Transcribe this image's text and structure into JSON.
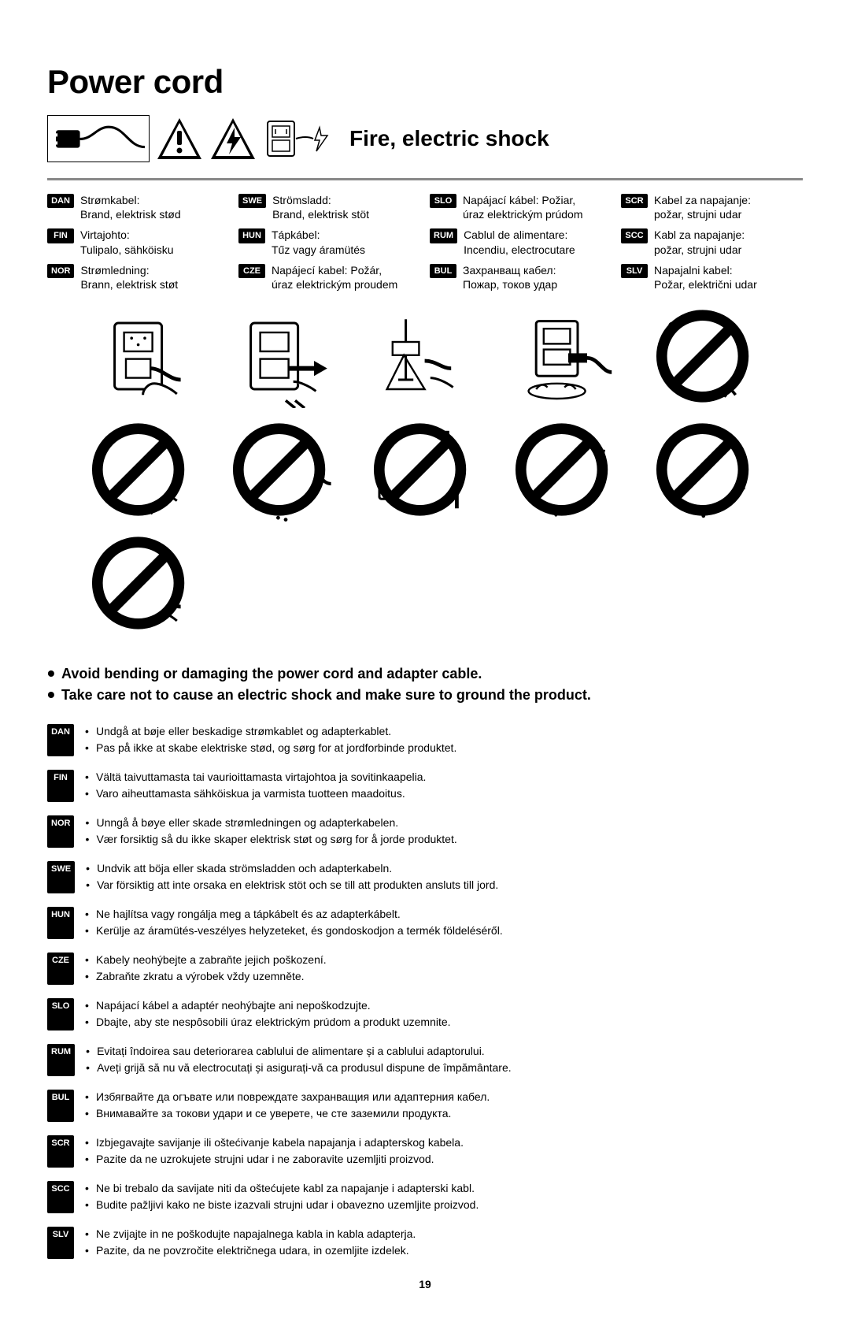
{
  "title": "Power cord",
  "subtitle": "Fire, electric shock",
  "page_number": "19",
  "translations_header": [
    {
      "tag": "DAN",
      "l1": "Strømkabel:",
      "l2": "Brand, elektrisk stød"
    },
    {
      "tag": "SWE",
      "l1": "Strömsladd:",
      "l2": "Brand, elektrisk stöt"
    },
    {
      "tag": "SLO",
      "l1": "Napájací kábel: Požiar,",
      "l2": "úraz elektrickým prúdom"
    },
    {
      "tag": "SCR",
      "l1": "Kabel za napajanje:",
      "l2": "požar, strujni udar"
    },
    {
      "tag": "FIN",
      "l1": "Virtajohto:",
      "l2": "Tulipalo, sähköisku"
    },
    {
      "tag": "HUN",
      "l1": "Tápkábel:",
      "l2": "Tűz vagy áramütés"
    },
    {
      "tag": "RUM",
      "l1": "Cablul de alimentare:",
      "l2": "Incendiu, electrocutare"
    },
    {
      "tag": "SCC",
      "l1": "Kabl za napajanje:",
      "l2": "požar, strujni udar"
    },
    {
      "tag": "NOR",
      "l1": "Strømledning:",
      "l2": "Brann, elektrisk støt"
    },
    {
      "tag": "CZE",
      "l1": "Napájecí kabel: Požár,",
      "l2": "úraz elektrickým proudem"
    },
    {
      "tag": "BUL",
      "l1": "Захранващ кабел:",
      "l2": "Пожар, токов удар"
    },
    {
      "tag": "SLV",
      "l1": "Napajalni kabel:",
      "l2": "Požar, električni udar"
    }
  ],
  "illustrations": [
    {
      "prohibit": false
    },
    {
      "prohibit": false
    },
    {
      "prohibit": false
    },
    {
      "prohibit": false
    },
    {
      "prohibit": true
    },
    {
      "prohibit": true
    },
    {
      "prohibit": true
    },
    {
      "prohibit": true
    },
    {
      "prohibit": true
    },
    {
      "prohibit": true
    },
    {
      "prohibit": true
    }
  ],
  "main_bullets": [
    "Avoid bending or damaging the power cord and adapter cable.",
    "Take care not to cause an electric shock and make sure to ground the product."
  ],
  "lang_blocks": [
    {
      "tag": "DAN",
      "lines": [
        "Undgå at bøje eller beskadige strømkablet og adapterkablet.",
        "Pas på ikke at skabe elektriske stød, og sørg for at jordforbinde produktet."
      ]
    },
    {
      "tag": "FIN",
      "lines": [
        "Vältä taivuttamasta tai vaurioittamasta virtajohtoa ja sovitinkaapelia.",
        "Varo aiheuttamasta sähköiskua ja varmista tuotteen maadoitus."
      ]
    },
    {
      "tag": "NOR",
      "lines": [
        "Unngå å bøye eller skade strømledningen og adapterkabelen.",
        "Vær forsiktig så du ikke skaper elektrisk støt og sørg for å jorde produktet."
      ]
    },
    {
      "tag": "SWE",
      "lines": [
        "Undvik att böja eller skada strömsladden och adapterkabeln.",
        "Var försiktig att inte orsaka en elektrisk stöt och se till att produkten ansluts till jord."
      ]
    },
    {
      "tag": "HUN",
      "lines": [
        "Ne hajlítsa vagy rongálja meg a tápkábelt és az adapterkábelt.",
        "Kerülje az áramütés-veszélyes helyzeteket, és gondoskodjon a termék földeléséről."
      ]
    },
    {
      "tag": "CZE",
      "lines": [
        "Kabely neohýbejte a zabraňte jejich poškození.",
        "Zabraňte zkratu a výrobek vždy uzemněte."
      ]
    },
    {
      "tag": "SLO",
      "lines": [
        "Napájací kábel a adaptér neohýbajte ani nepoškodzujte.",
        "Dbajte, aby ste nespôsobili úraz elektrickým prúdom a produkt uzemnite."
      ]
    },
    {
      "tag": "RUM",
      "lines": [
        "Evitați îndoirea sau deteriorarea cablului de alimentare și a cablului adaptorului.",
        "Aveți grijă să nu vă electrocutați și asigurați-vă ca produsul dispune de împământare."
      ]
    },
    {
      "tag": "BUL",
      "lines": [
        "Избягвайте да огъвате или повреждате захранващия или адаптерния кабел.",
        "Внимавайте за токови удари и се уверете, че сте заземили продукта."
      ]
    },
    {
      "tag": "SCR",
      "lines": [
        "Izbjegavajte savijanje ili oštećivanje kabela napajanja i adapterskog kabela.",
        "Pazite da ne uzrokujete strujni udar i ne zaboravite uzemljiti proizvod."
      ]
    },
    {
      "tag": "SCC",
      "lines": [
        "Ne bi trebalo da savijate niti da oštećujete kabl za napajanje i adapterski kabl.",
        "Budite pažljivi kako ne biste izazvali strujni udar i obavezno uzemljite proizvod."
      ]
    },
    {
      "tag": "SLV",
      "lines": [
        "Ne zvijajte in ne poškodujte napajalnega kabla in kabla adapterja.",
        "Pazite, da ne povzročite električnega udara, in ozemljite izdelek."
      ]
    }
  ],
  "colors": {
    "text": "#000000",
    "rule": "#888888",
    "bg": "#ffffff",
    "tag_bg": "#000000",
    "tag_fg": "#ffffff"
  },
  "fonts": {
    "title_size": 42,
    "subtitle_size": 28,
    "body_size": 14,
    "main_bullet_size": 18
  }
}
